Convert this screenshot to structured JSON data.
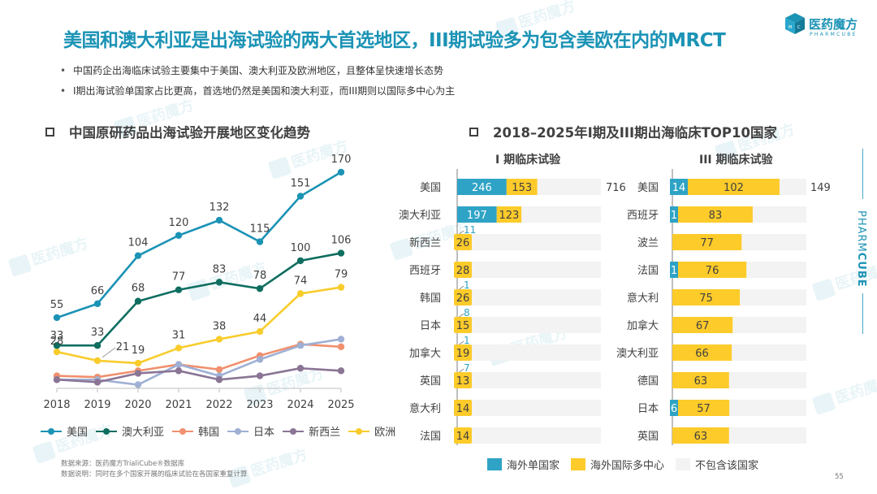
{
  "header": {
    "title": "美国和澳大利亚是出海试验的两大首选地区，III期试验多为包含美欧在内的MRCT",
    "logo_name": "医药魔方",
    "logo_sub": "PHARMCUBE",
    "brand_color": "#1b93b5"
  },
  "bullets": [
    "中国药企出海临床试验主要集中于美国、澳大利亚及欧洲地区，且整体呈快速增长态势",
    "I期出海试验单国家占比更高，首选地仍然是美国和澳大利亚，而III期则以国际多中心为主"
  ],
  "side_brand": {
    "light": "PHARM",
    "bold": "CUBE"
  },
  "watermark": "医药魔方",
  "footnote": {
    "source": "数据来源：医药魔方TrialiCube®数据库",
    "note": "数据说明：同时在多个国家开展的临床试验在各国家重复计算"
  },
  "page_number": "55",
  "chart_data": [
    {
      "type": "line",
      "title": "中国原研药品出海试验开展地区变化趋势",
      "xlabel": "",
      "ylabel": "",
      "x": [
        "2018",
        "2019",
        "2020",
        "2021",
        "2022",
        "2023",
        "2024",
        "2025"
      ],
      "ylim": [
        0,
        180
      ],
      "grid": false,
      "legend_position": "bottom",
      "series": [
        {
          "name": "美国",
          "color": "#1b93b5",
          "values": [
            55,
            66,
            104,
            120,
            132,
            115,
            151,
            170
          ],
          "labels": [
            "55",
            "66",
            "104",
            "120",
            "132",
            "115",
            "151",
            "170"
          ]
        },
        {
          "name": "澳大利亚",
          "color": "#0e6e60",
          "values": [
            33,
            33,
            68,
            77,
            83,
            78,
            100,
            106
          ],
          "labels": [
            "33",
            "33",
            "68",
            "77",
            "83",
            "78",
            "100",
            "106"
          ]
        },
        {
          "name": "韩国",
          "color": "#f0906e",
          "values": [
            9,
            8,
            13,
            18,
            14,
            25,
            34,
            32
          ],
          "labels": []
        },
        {
          "name": "日本",
          "color": "#9fb0d4",
          "values": [
            6,
            6,
            2,
            18,
            9,
            22,
            33,
            38
          ],
          "labels": []
        },
        {
          "name": "新西兰",
          "color": "#8a7595",
          "values": [
            6,
            4,
            11,
            13,
            6,
            9,
            15,
            13
          ],
          "labels": []
        },
        {
          "name": "欧洲",
          "color": "#f8cc2c",
          "values": [
            28,
            21,
            19,
            31,
            38,
            44,
            74,
            79
          ],
          "labels": [
            "28",
            "21",
            "19",
            "31",
            "38",
            "44",
            "74",
            "79"
          ]
        }
      ]
    },
    {
      "type": "bar",
      "orientation": "horizontal",
      "stacked": true,
      "title": "2018–2025年I期及III期出海临床TOP10国家",
      "subtitle": "I 期临床试验",
      "total": 716,
      "xlim": [
        0,
        716
      ],
      "categories": [
        "美国",
        "澳大利亚",
        "新西兰",
        "西班牙",
        "韩国",
        "日本",
        "加拿大",
        "英国",
        "意大利",
        "法国"
      ],
      "series": [
        {
          "name": "海外单国家",
          "color": "#2ea3c6",
          "values": [
            246,
            197,
            11,
            0,
            1,
            8,
            1,
            7,
            0,
            0
          ]
        },
        {
          "name": "海外国际多中心",
          "color": "#fdcb2a",
          "values": [
            153,
            123,
            26,
            28,
            26,
            15,
            19,
            13,
            14,
            14
          ]
        },
        {
          "name": "不包含该国家",
          "color": "#f3f3f3",
          "values": [
            317,
            396,
            679,
            688,
            689,
            693,
            696,
            696,
            702,
            702
          ]
        }
      ],
      "total_label": "716"
    },
    {
      "type": "bar",
      "orientation": "horizontal",
      "stacked": true,
      "subtitle": "III 期临床试验",
      "total": 149,
      "xlim": [
        0,
        149
      ],
      "categories": [
        "美国",
        "西班牙",
        "波兰",
        "法国",
        "意大利",
        "加拿大",
        "澳大利亚",
        "德国",
        "日本",
        "英国"
      ],
      "series": [
        {
          "name": "海外单国家",
          "color": "#2ea3c6",
          "values": [
            14,
            1,
            0,
            1,
            0,
            0,
            0,
            0,
            6,
            0
          ]
        },
        {
          "name": "海外国际多中心",
          "color": "#fdcb2a",
          "values": [
            102,
            83,
            77,
            76,
            75,
            67,
            66,
            63,
            57,
            63
          ]
        },
        {
          "name": "不包含该国家",
          "color": "#f3f3f3",
          "values": [
            33,
            65,
            72,
            72,
            74,
            82,
            83,
            86,
            86,
            86
          ]
        }
      ],
      "total_label": "149"
    }
  ],
  "bar_legend": [
    {
      "name": "海外单国家",
      "color": "#2ea3c6"
    },
    {
      "name": "海外国际多中心",
      "color": "#fdcb2a"
    },
    {
      "name": "不包含该国家",
      "color": "#f3f3f3"
    }
  ]
}
